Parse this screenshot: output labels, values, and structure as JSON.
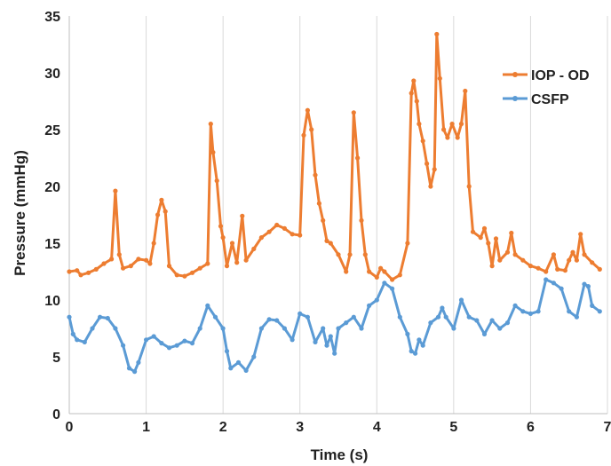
{
  "chart_data": {
    "type": "line",
    "title": "",
    "xlabel": "Time (s)",
    "ylabel": "Pressure (mmHg)",
    "xlim": [
      0,
      7
    ],
    "ylim": [
      0,
      35
    ],
    "xticks": [
      "0",
      "1",
      "2",
      "3",
      "4",
      "5",
      "6",
      "7"
    ],
    "yticks": [
      "0",
      "5",
      "10",
      "15",
      "20",
      "25",
      "30",
      "35"
    ],
    "grid": "vertical",
    "legend_position": "right",
    "series": [
      {
        "name": "IOP - OD",
        "color": "#ed7d31",
        "points": [
          [
            0.0,
            12.5
          ],
          [
            0.1,
            12.6
          ],
          [
            0.15,
            12.2
          ],
          [
            0.25,
            12.4
          ],
          [
            0.35,
            12.7
          ],
          [
            0.45,
            13.2
          ],
          [
            0.55,
            13.6
          ],
          [
            0.6,
            19.6
          ],
          [
            0.65,
            14.0
          ],
          [
            0.7,
            12.8
          ],
          [
            0.8,
            13.0
          ],
          [
            0.9,
            13.6
          ],
          [
            1.0,
            13.5
          ],
          [
            1.05,
            13.2
          ],
          [
            1.1,
            15.0
          ],
          [
            1.15,
            17.5
          ],
          [
            1.2,
            18.8
          ],
          [
            1.25,
            17.8
          ],
          [
            1.3,
            13.0
          ],
          [
            1.4,
            12.2
          ],
          [
            1.5,
            12.1
          ],
          [
            1.6,
            12.4
          ],
          [
            1.7,
            12.8
          ],
          [
            1.8,
            13.2
          ],
          [
            1.84,
            25.5
          ],
          [
            1.87,
            23.0
          ],
          [
            1.92,
            20.5
          ],
          [
            1.97,
            16.5
          ],
          [
            2.0,
            15.5
          ],
          [
            2.05,
            13.0
          ],
          [
            2.12,
            15.0
          ],
          [
            2.18,
            13.3
          ],
          [
            2.25,
            17.4
          ],
          [
            2.3,
            13.5
          ],
          [
            2.4,
            14.5
          ],
          [
            2.5,
            15.5
          ],
          [
            2.6,
            16.0
          ],
          [
            2.7,
            16.6
          ],
          [
            2.8,
            16.3
          ],
          [
            2.9,
            15.8
          ],
          [
            3.0,
            15.7
          ],
          [
            3.05,
            24.5
          ],
          [
            3.1,
            26.7
          ],
          [
            3.15,
            25.0
          ],
          [
            3.2,
            21.0
          ],
          [
            3.25,
            18.5
          ],
          [
            3.3,
            17.0
          ],
          [
            3.35,
            15.2
          ],
          [
            3.4,
            15.0
          ],
          [
            3.5,
            14.0
          ],
          [
            3.6,
            12.5
          ],
          [
            3.65,
            14.0
          ],
          [
            3.7,
            26.5
          ],
          [
            3.75,
            22.5
          ],
          [
            3.8,
            17.0
          ],
          [
            3.85,
            14.0
          ],
          [
            3.9,
            12.5
          ],
          [
            4.0,
            12.0
          ],
          [
            4.05,
            12.8
          ],
          [
            4.1,
            12.5
          ],
          [
            4.2,
            11.8
          ],
          [
            4.3,
            12.2
          ],
          [
            4.4,
            15.0
          ],
          [
            4.45,
            28.2
          ],
          [
            4.48,
            29.3
          ],
          [
            4.52,
            27.5
          ],
          [
            4.55,
            25.5
          ],
          [
            4.6,
            24.0
          ],
          [
            4.65,
            22.0
          ],
          [
            4.7,
            20.0
          ],
          [
            4.75,
            21.5
          ],
          [
            4.78,
            33.4
          ],
          [
            4.82,
            29.5
          ],
          [
            4.87,
            25.0
          ],
          [
            4.92,
            24.3
          ],
          [
            4.98,
            25.5
          ],
          [
            5.05,
            24.3
          ],
          [
            5.1,
            25.5
          ],
          [
            5.15,
            28.4
          ],
          [
            5.2,
            20.0
          ],
          [
            5.25,
            16.0
          ],
          [
            5.35,
            15.5
          ],
          [
            5.4,
            16.3
          ],
          [
            5.45,
            15.0
          ],
          [
            5.5,
            13.0
          ],
          [
            5.55,
            15.4
          ],
          [
            5.6,
            13.5
          ],
          [
            5.7,
            14.2
          ],
          [
            5.75,
            15.9
          ],
          [
            5.8,
            14.0
          ],
          [
            5.9,
            13.5
          ],
          [
            6.0,
            13.0
          ],
          [
            6.1,
            12.8
          ],
          [
            6.2,
            12.5
          ],
          [
            6.3,
            14.0
          ],
          [
            6.35,
            12.7
          ],
          [
            6.45,
            12.6
          ],
          [
            6.5,
            13.5
          ],
          [
            6.55,
            14.2
          ],
          [
            6.6,
            13.5
          ],
          [
            6.65,
            15.8
          ],
          [
            6.7,
            14.0
          ],
          [
            6.8,
            13.3
          ],
          [
            6.9,
            12.7
          ]
        ]
      },
      {
        "name": "CSFP",
        "color": "#5b9bd5",
        "points": [
          [
            0.0,
            8.5
          ],
          [
            0.05,
            7.0
          ],
          [
            0.1,
            6.5
          ],
          [
            0.2,
            6.3
          ],
          [
            0.3,
            7.5
          ],
          [
            0.4,
            8.5
          ],
          [
            0.5,
            8.4
          ],
          [
            0.6,
            7.5
          ],
          [
            0.7,
            6.0
          ],
          [
            0.78,
            4.0
          ],
          [
            0.85,
            3.7
          ],
          [
            0.9,
            4.5
          ],
          [
            1.0,
            6.5
          ],
          [
            1.1,
            6.8
          ],
          [
            1.2,
            6.2
          ],
          [
            1.3,
            5.8
          ],
          [
            1.4,
            6.0
          ],
          [
            1.5,
            6.4
          ],
          [
            1.6,
            6.2
          ],
          [
            1.7,
            7.5
          ],
          [
            1.8,
            9.5
          ],
          [
            1.9,
            8.5
          ],
          [
            2.0,
            7.5
          ],
          [
            2.05,
            5.5
          ],
          [
            2.1,
            4.0
          ],
          [
            2.2,
            4.5
          ],
          [
            2.3,
            3.8
          ],
          [
            2.4,
            5.0
          ],
          [
            2.5,
            7.5
          ],
          [
            2.6,
            8.3
          ],
          [
            2.7,
            8.2
          ],
          [
            2.8,
            7.5
          ],
          [
            2.9,
            6.5
          ],
          [
            3.0,
            8.8
          ],
          [
            3.1,
            8.5
          ],
          [
            3.2,
            6.3
          ],
          [
            3.3,
            7.5
          ],
          [
            3.35,
            6.0
          ],
          [
            3.4,
            6.8
          ],
          [
            3.45,
            5.3
          ],
          [
            3.5,
            7.5
          ],
          [
            3.6,
            8.0
          ],
          [
            3.7,
            8.5
          ],
          [
            3.8,
            7.5
          ],
          [
            3.9,
            9.5
          ],
          [
            4.0,
            10.0
          ],
          [
            4.1,
            11.5
          ],
          [
            4.2,
            11.0
          ],
          [
            4.3,
            8.5
          ],
          [
            4.4,
            7.0
          ],
          [
            4.45,
            5.5
          ],
          [
            4.5,
            5.3
          ],
          [
            4.55,
            6.5
          ],
          [
            4.6,
            6.0
          ],
          [
            4.7,
            8.0
          ],
          [
            4.8,
            8.5
          ],
          [
            4.85,
            9.3
          ],
          [
            4.9,
            8.5
          ],
          [
            5.0,
            7.5
          ],
          [
            5.1,
            10.0
          ],
          [
            5.2,
            8.5
          ],
          [
            5.3,
            8.2
          ],
          [
            5.4,
            7.0
          ],
          [
            5.5,
            8.2
          ],
          [
            5.6,
            7.5
          ],
          [
            5.7,
            8.0
          ],
          [
            5.8,
            9.5
          ],
          [
            5.9,
            9.0
          ],
          [
            6.0,
            8.8
          ],
          [
            6.1,
            9.0
          ],
          [
            6.2,
            11.8
          ],
          [
            6.3,
            11.5
          ],
          [
            6.4,
            11.0
          ],
          [
            6.5,
            9.0
          ],
          [
            6.6,
            8.5
          ],
          [
            6.7,
            11.4
          ],
          [
            6.75,
            11.2
          ],
          [
            6.8,
            9.5
          ],
          [
            6.9,
            9.0
          ]
        ]
      }
    ]
  }
}
